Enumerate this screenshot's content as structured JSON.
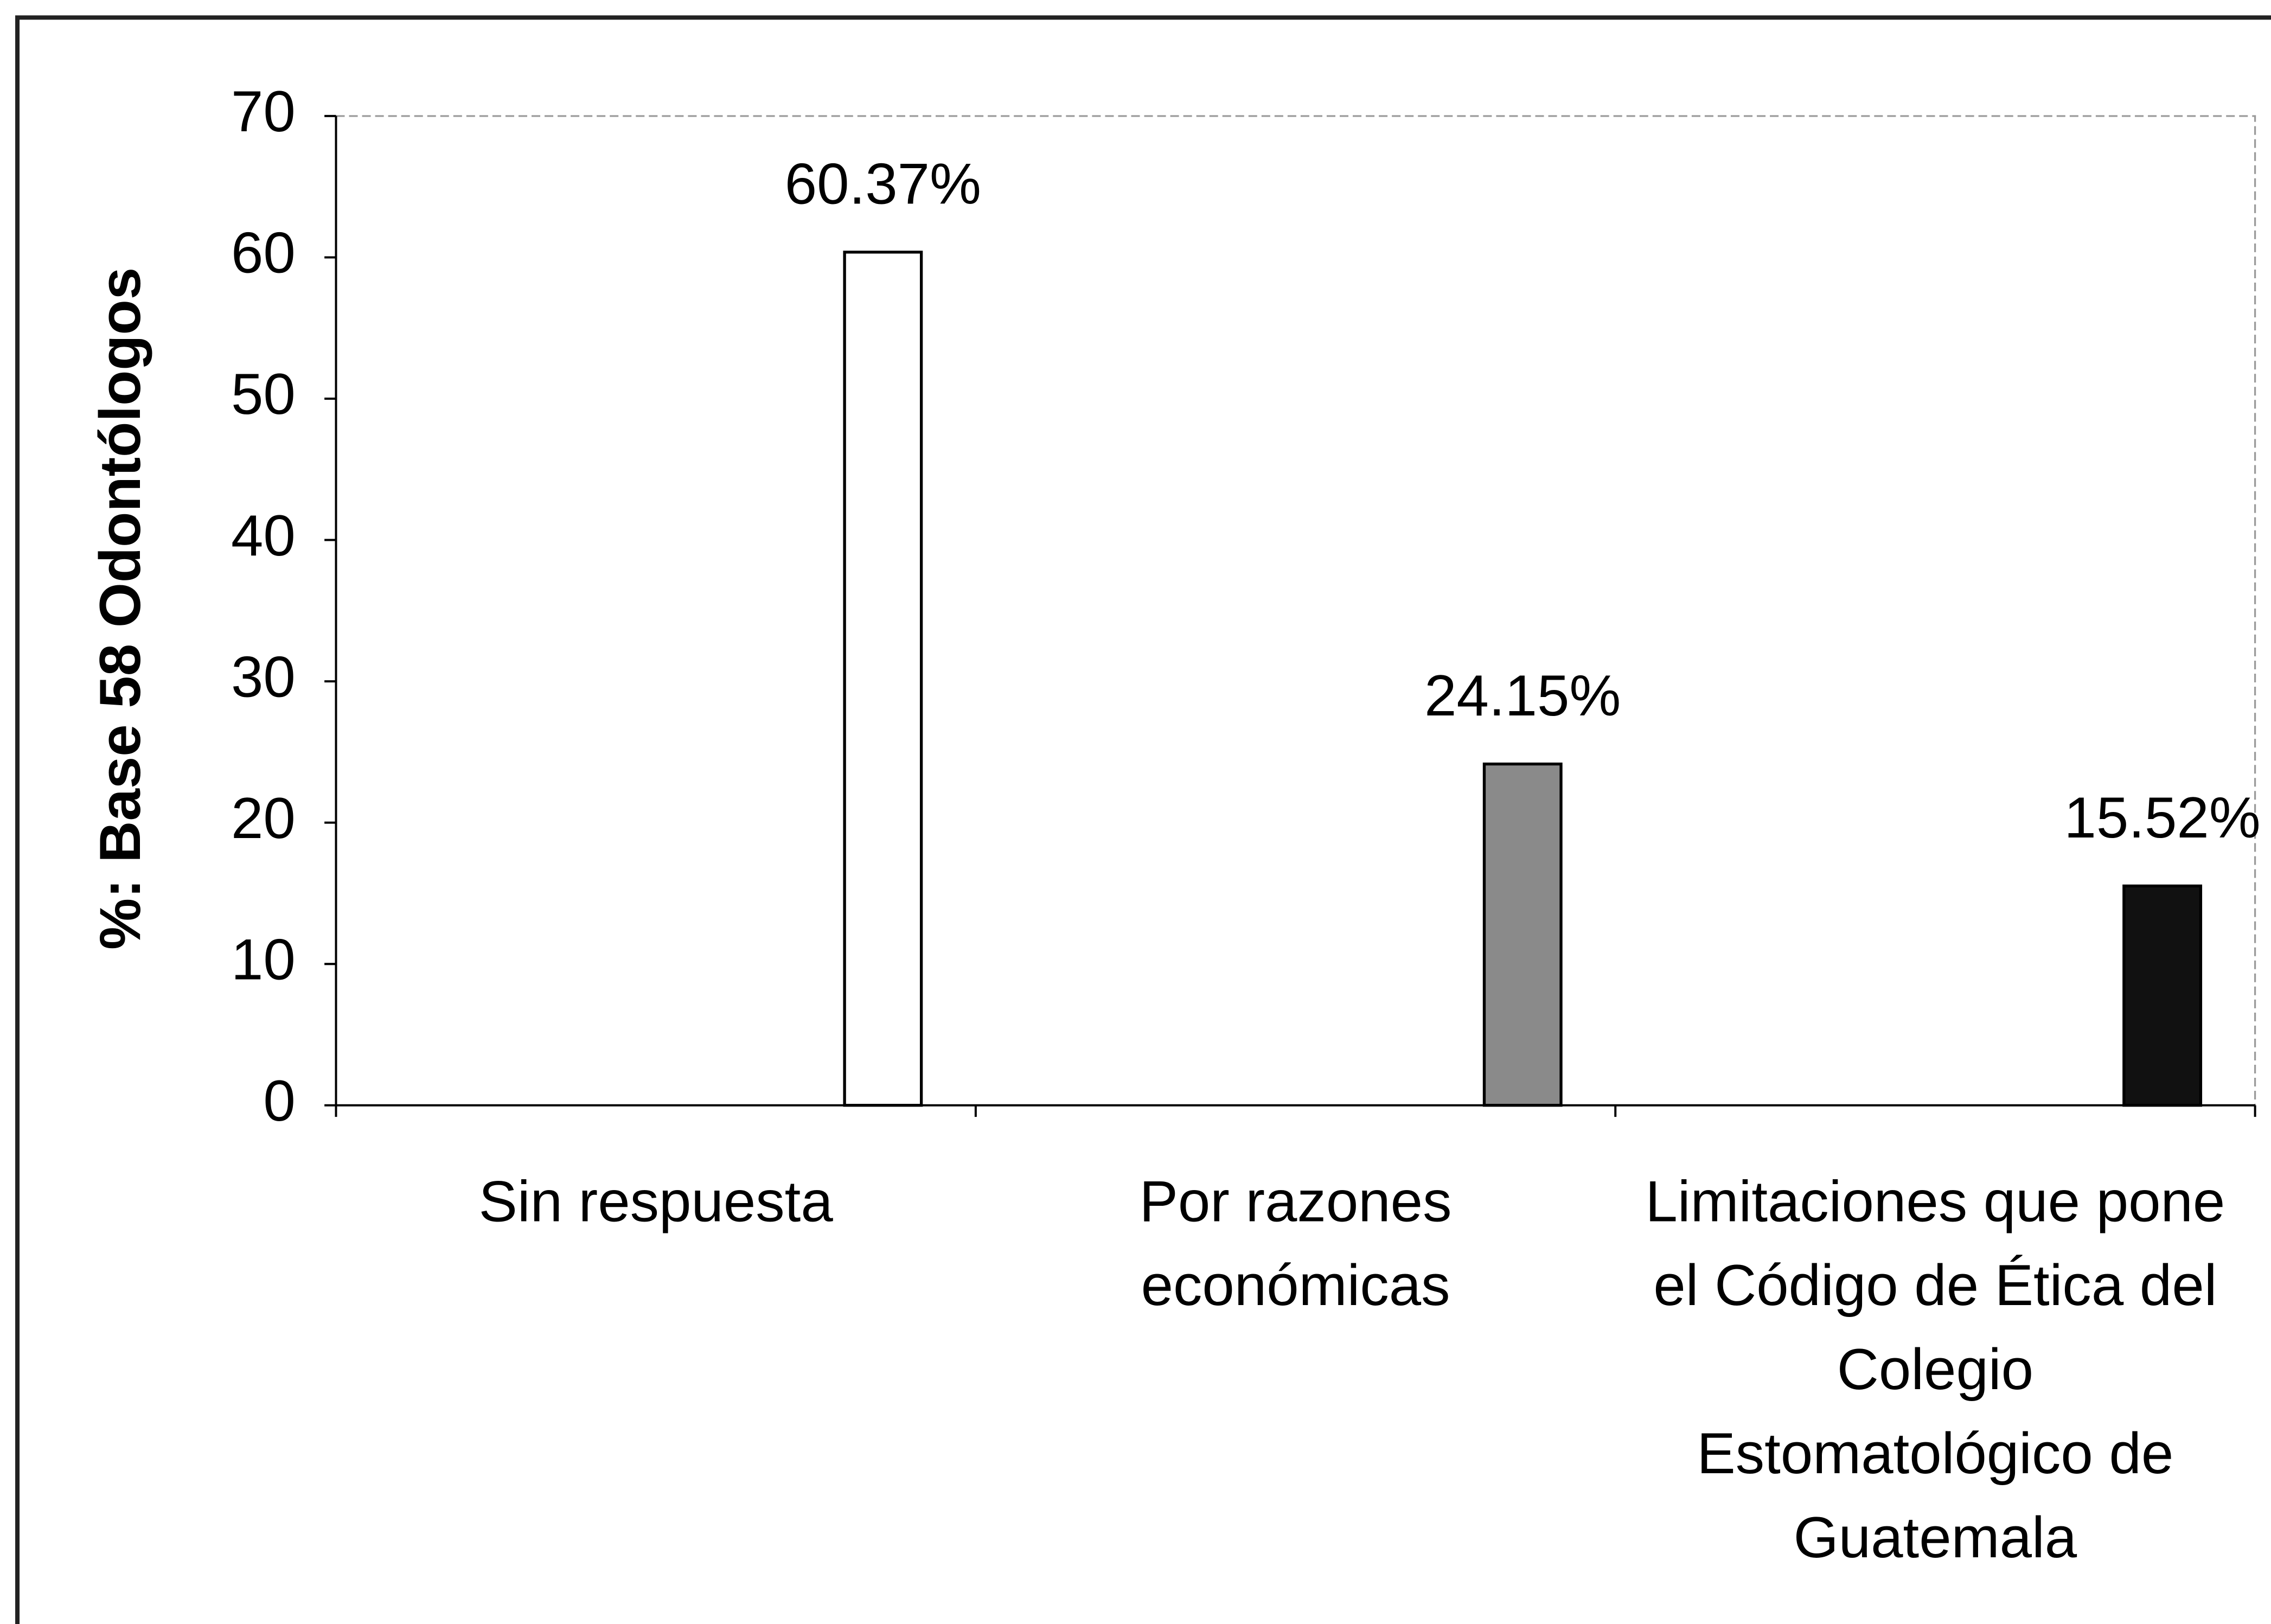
{
  "chart_data": {
    "type": "bar",
    "y_label": "%: Base 58 Odontólogos",
    "categories": [
      "Sin respuesta",
      "Por razones económicas",
      "Limitaciones que pone el Código de Ética del Colegio Estomatológico de Guatemala"
    ],
    "values": [
      60.37,
      24.15,
      15.52
    ],
    "value_labels": [
      "60.37%",
      "24.15%",
      "15.52%"
    ],
    "colors": [
      "#ffffff",
      "#8a8a8a",
      "#111111"
    ],
    "ylim": [
      0,
      70
    ],
    "yticks": [
      0,
      10,
      20,
      30,
      40,
      50,
      60,
      70
    ],
    "grid": false
  }
}
